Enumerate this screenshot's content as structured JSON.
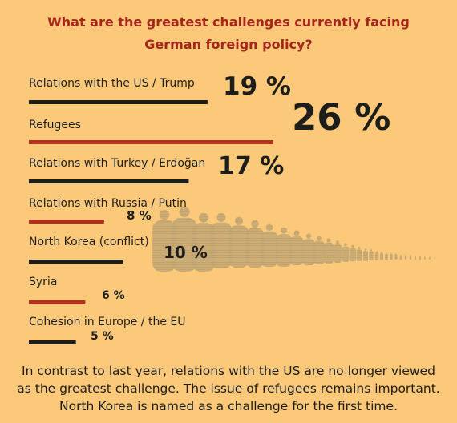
{
  "chart_data": {
    "type": "bar",
    "title_lines": [
      "What are the greatest challenges currently facing",
      "German foreign policy?"
    ],
    "categories": [
      "Relations with the US / Trump",
      "Refugees",
      "Relations with Turkey / Erdoğan",
      "Relations with Russia / Putin",
      "North Korea (conflict)",
      "Syria",
      "Cohesion in Europe / the EU"
    ],
    "values": [
      19,
      26,
      17,
      8,
      10,
      6,
      5
    ],
    "value_labels": [
      "19 %",
      "26 %",
      "17 %",
      "8 %",
      "10 %",
      "6 %",
      "5 %"
    ],
    "unit": "%",
    "bar_colors": [
      "#1d1d1b",
      "#b2311f",
      "#1d1d1b",
      "#b2311f",
      "#1d1d1b",
      "#b2311f",
      "#1d1d1b"
    ],
    "orientation": "horizontal",
    "xlim": [
      0,
      26
    ],
    "grid": false,
    "legend": "none"
  },
  "footer_lines": [
    "In contrast to last year, relations with the US are no longer viewed",
    "as the greatest challenge. The issue of refugees remains important.",
    "North Korea is named as a challenge for the first time."
  ],
  "colors": {
    "background": "#fcc97a",
    "title": "#a6261d",
    "dark_bar": "#1d1d1b",
    "red_bar": "#b2311f",
    "silhouette": "#b9a172"
  }
}
